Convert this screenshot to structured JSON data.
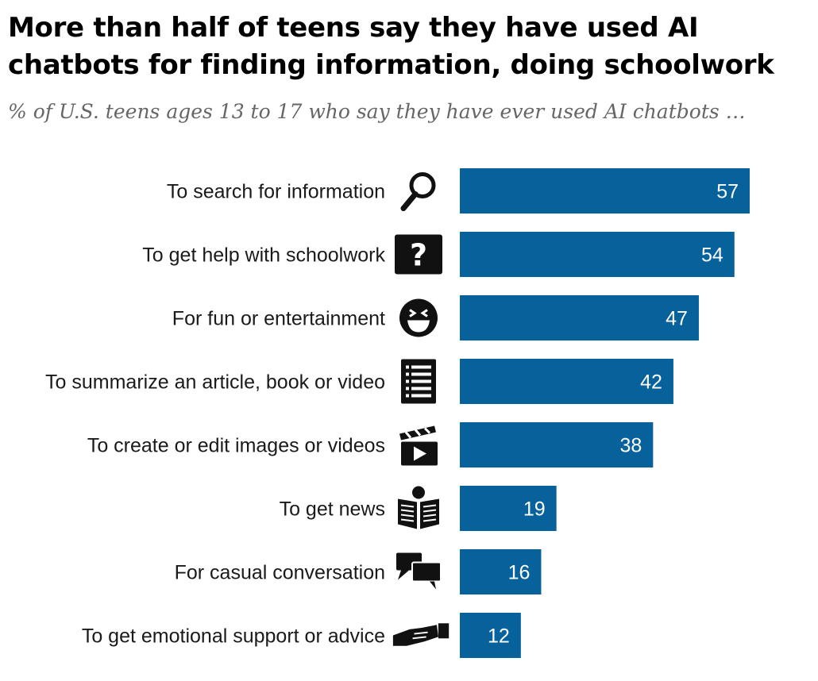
{
  "chart_data": {
    "type": "bar",
    "orientation": "horizontal",
    "title": "More than half of teens say they have used AI chatbots for finding information, doing schoolwork",
    "subtitle": "% of U.S. teens ages 13 to 17 who say they have ever used AI chatbots …",
    "categories": [
      "To search for information",
      "To get help with schoolwork",
      "For fun or entertainment",
      "To summarize an article, book or video",
      "To create or edit images or videos",
      "To get news",
      "For casual conversation",
      "To get emotional support or advice"
    ],
    "icons": [
      "magnifying-glass-icon",
      "question-mark-icon",
      "laughing-face-icon",
      "list-icon",
      "clapperboard-icon",
      "newspaper-icon",
      "speech-bubbles-icon",
      "handshake-icon"
    ],
    "values": [
      57,
      54,
      47,
      42,
      38,
      19,
      16,
      12
    ],
    "xlim": [
      0,
      57
    ],
    "bar_color": "#07629c",
    "value_label_color": "#ffffff",
    "xlabel": "",
    "ylabel": "",
    "grid": false,
    "legend": "none"
  }
}
